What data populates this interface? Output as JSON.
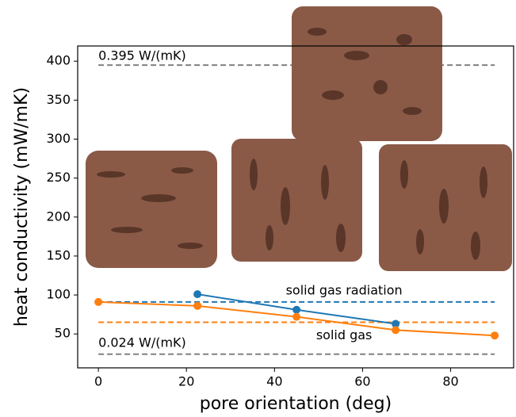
{
  "chart_data": {
    "type": "line",
    "xlabel": "pore orientation (deg)",
    "ylabel": "heat conductivity (mW/mK)",
    "xlim": [
      -4.7,
      94.3
    ],
    "ylim": [
      6.5,
      419.5
    ],
    "xticks": [
      0,
      20,
      40,
      60,
      80
    ],
    "yticks": [
      50,
      100,
      150,
      200,
      250,
      300,
      350,
      400
    ],
    "grid": false,
    "series": [
      {
        "color": "#1f77b4",
        "x": [
          22.5,
          45,
          67.5
        ],
        "values": [
          101,
          81,
          63
        ]
      },
      {
        "color": "#ff7f0e",
        "x": [
          0,
          22.5,
          45,
          67.5,
          90
        ],
        "values": [
          91,
          86,
          72,
          55,
          48
        ]
      }
    ],
    "hlines": [
      {
        "y": 395,
        "color": "#808080",
        "label": "0.395 W/(mK)"
      },
      {
        "y": 91,
        "color": "#1f77b4",
        "label": "solid gas radiation"
      },
      {
        "y": 65,
        "color": "#ff7f0e",
        "label": "solid gas"
      },
      {
        "y": 24,
        "color": "#808080",
        "label": "0.024 W/(mK)"
      }
    ],
    "hline_xrange": [
      0,
      90
    ]
  }
}
